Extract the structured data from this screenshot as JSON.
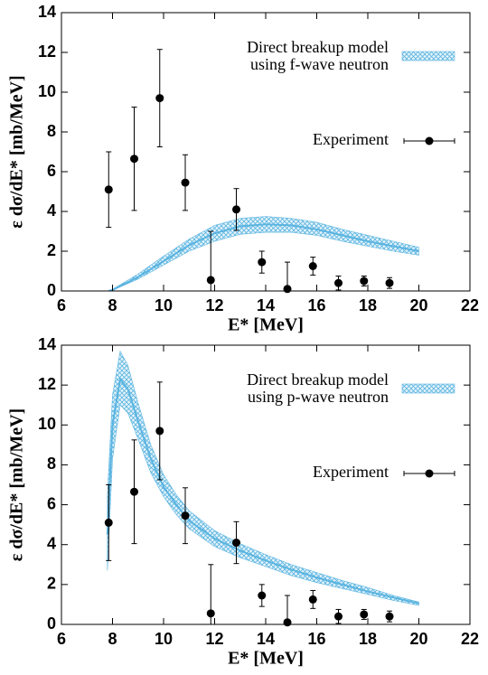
{
  "chart_data": [
    {
      "type": "line",
      "xlabel": "E* [MeV]",
      "ylabel": "ε dσ/dE* [mb/MeV]",
      "xlim": [
        6,
        22
      ],
      "xticks": [
        6,
        8,
        10,
        12,
        14,
        16,
        18,
        20,
        22
      ],
      "ylim": [
        0,
        14
      ],
      "yticks": [
        0,
        2,
        4,
        6,
        8,
        10,
        12,
        14
      ],
      "series": [
        {
          "name": [
            "Direct breakup model",
            "using f-wave neutron"
          ],
          "color": "#5ab4e0",
          "x": [
            7.85,
            8,
            9,
            10,
            11,
            12,
            13,
            14,
            15,
            16,
            17,
            18,
            19,
            20
          ],
          "values": [
            0,
            0.05,
            0.7,
            1.5,
            2.3,
            2.9,
            3.25,
            3.35,
            3.3,
            3.1,
            2.8,
            2.5,
            2.25,
            2.0
          ],
          "lower": [
            0,
            0.03,
            0.6,
            1.3,
            2.0,
            2.5,
            2.85,
            2.95,
            2.95,
            2.8,
            2.5,
            2.25,
            2.0,
            1.8
          ],
          "upper": [
            0,
            0.08,
            0.85,
            1.75,
            2.6,
            3.3,
            3.65,
            3.75,
            3.65,
            3.45,
            3.1,
            2.8,
            2.5,
            2.2
          ]
        },
        {
          "name": "Experiment",
          "color": "#000000",
          "x": [
            7.85,
            8.85,
            9.85,
            10.85,
            11.85,
            12.85,
            13.85,
            14.85,
            15.85,
            16.85,
            17.85,
            18.85
          ],
          "values": [
            5.1,
            6.65,
            9.7,
            5.45,
            0.55,
            4.1,
            1.45,
            0.1,
            1.25,
            0.4,
            0.5,
            0.4
          ],
          "errors": [
            1.9,
            2.6,
            2.45,
            1.4,
            2.45,
            1.05,
            0.55,
            1.35,
            0.45,
            0.35,
            0.25,
            0.27
          ]
        }
      ]
    },
    {
      "type": "line",
      "xlabel": "E* [MeV]",
      "ylabel": "ε dσ/dE* [mb/MeV]",
      "xlim": [
        6,
        22
      ],
      "xticks": [
        6,
        8,
        10,
        12,
        14,
        16,
        18,
        20,
        22
      ],
      "ylim": [
        0,
        14
      ],
      "yticks": [
        0,
        2,
        4,
        6,
        8,
        10,
        12,
        14
      ],
      "series": [
        {
          "name": [
            "Direct breakup model",
            "using p-wave neutron"
          ],
          "color": "#5ab4e0",
          "x": [
            7.8,
            8.0,
            8.3,
            8.6,
            9.0,
            9.5,
            10,
            10.5,
            11,
            12,
            13,
            14,
            15,
            16,
            17,
            18,
            19,
            20
          ],
          "values": [
            4.5,
            10.0,
            12.3,
            11.8,
            10.2,
            8.3,
            6.9,
            6.0,
            5.2,
            4.3,
            3.7,
            3.2,
            2.75,
            2.35,
            2.0,
            1.65,
            1.35,
            1.05
          ],
          "lower": [
            2.7,
            8.3,
            11.0,
            10.6,
            9.3,
            7.6,
            6.4,
            5.5,
            4.8,
            3.9,
            3.35,
            2.9,
            2.45,
            2.1,
            1.8,
            1.5,
            1.2,
            0.95
          ],
          "upper": [
            6.5,
            11.5,
            13.7,
            13.0,
            11.1,
            9.0,
            7.5,
            6.5,
            5.7,
            4.7,
            4.05,
            3.5,
            3.0,
            2.6,
            2.2,
            1.85,
            1.45,
            1.12
          ]
        },
        {
          "name": "Experiment",
          "color": "#000000",
          "x": [
            7.85,
            8.85,
            9.85,
            10.85,
            11.85,
            12.85,
            13.85,
            14.85,
            15.85,
            16.85,
            17.85,
            18.85
          ],
          "values": [
            5.1,
            6.65,
            9.7,
            5.45,
            0.55,
            4.1,
            1.45,
            0.1,
            1.25,
            0.4,
            0.5,
            0.4
          ],
          "errors": [
            1.9,
            2.6,
            2.45,
            1.4,
            2.45,
            1.05,
            0.55,
            1.35,
            0.45,
            0.35,
            0.25,
            0.27
          ]
        }
      ]
    }
  ]
}
